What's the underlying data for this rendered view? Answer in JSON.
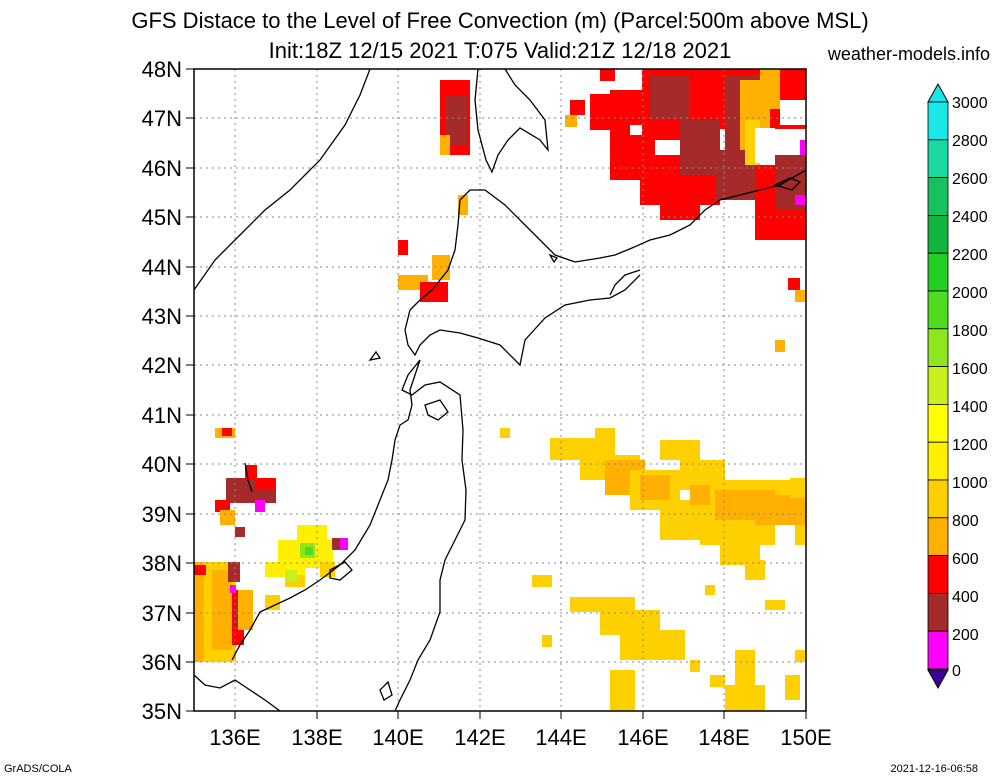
{
  "title_line1": "GFS Distace to the Level of Free Convection (m) (Parcel:500m above MSL)",
  "title_line2": "Init:18Z 12/15 2021 T:075 Valid:21Z 12/18 2021",
  "site": "weather-models.info",
  "footer_left": "GrADS/COLA",
  "footer_right": "2021-12-16-06:58",
  "lat_labels": [
    "48N",
    "47N",
    "46N",
    "45N",
    "44N",
    "43N",
    "42N",
    "41N",
    "40N",
    "39N",
    "38N",
    "37N",
    "36N",
    "35N"
  ],
  "lon_labels": [
    "136E",
    "138E",
    "140E",
    "142E",
    "144E",
    "146E",
    "148E",
    "150E"
  ],
  "colorbar": {
    "labels": [
      "3000",
      "2800",
      "2600",
      "2400",
      "2200",
      "2000",
      "1800",
      "1600",
      "1400",
      "1200",
      "1000",
      "800",
      "600",
      "400",
      "200",
      "0"
    ],
    "colors": [
      "#19e6e6",
      "#19d8a0",
      "#19c060",
      "#13b63c",
      "#23cf23",
      "#4fdc1e",
      "#8ee61e",
      "#c8f01e",
      "#ffff00",
      "#fff000",
      "#ffd000",
      "#ffb000",
      "#ff0000",
      "#a52a2a",
      "#ff00ff",
      "#3c0096"
    ]
  }
}
